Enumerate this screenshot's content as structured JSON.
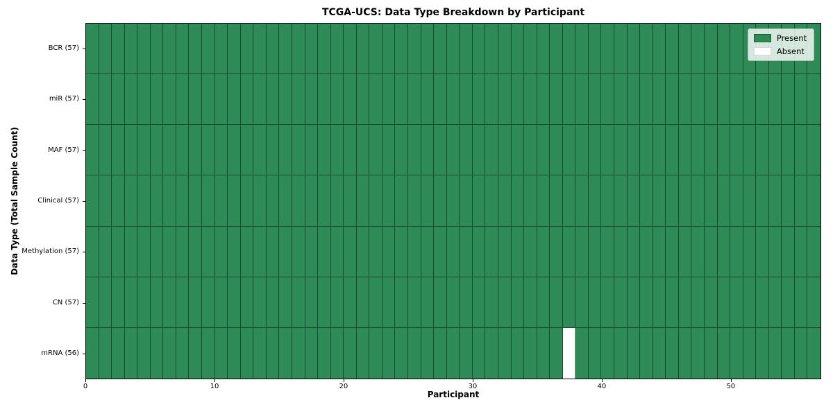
{
  "chart_data": {
    "type": "heatmap",
    "title": "TCGA-UCS: Data Type Breakdown by Participant",
    "xlabel": "Participant",
    "ylabel": "Data Type (Total Sample Count)",
    "n_participants": 57,
    "x_range": [
      0,
      57
    ],
    "x_ticks": [
      0,
      10,
      20,
      30,
      40,
      50
    ],
    "grid": false,
    "legend_position": "upper right",
    "legend_entries": [
      "Present",
      "Absent"
    ],
    "colors": {
      "present": "#2E8B57",
      "absent": "#FFFFFF",
      "cell_edge": "rgba(0,0,0,0.45)"
    },
    "rows": [
      {
        "label": "BCR (57)",
        "data_type": "BCR",
        "total_samples": 57,
        "absent_participants": []
      },
      {
        "label": "miR (57)",
        "data_type": "miR",
        "total_samples": 57,
        "absent_participants": []
      },
      {
        "label": "MAF (57)",
        "data_type": "MAF",
        "total_samples": 57,
        "absent_participants": []
      },
      {
        "label": "Clinical (57)",
        "data_type": "Clinical",
        "total_samples": 57,
        "absent_participants": []
      },
      {
        "label": "Methylation (57)",
        "data_type": "Methylation",
        "total_samples": 57,
        "absent_participants": []
      },
      {
        "label": "CN (57)",
        "data_type": "CN",
        "total_samples": 57,
        "absent_participants": []
      },
      {
        "label": "mRNA (56)",
        "data_type": "mRNA",
        "total_samples": 56,
        "absent_participants": [
          37
        ]
      }
    ]
  }
}
